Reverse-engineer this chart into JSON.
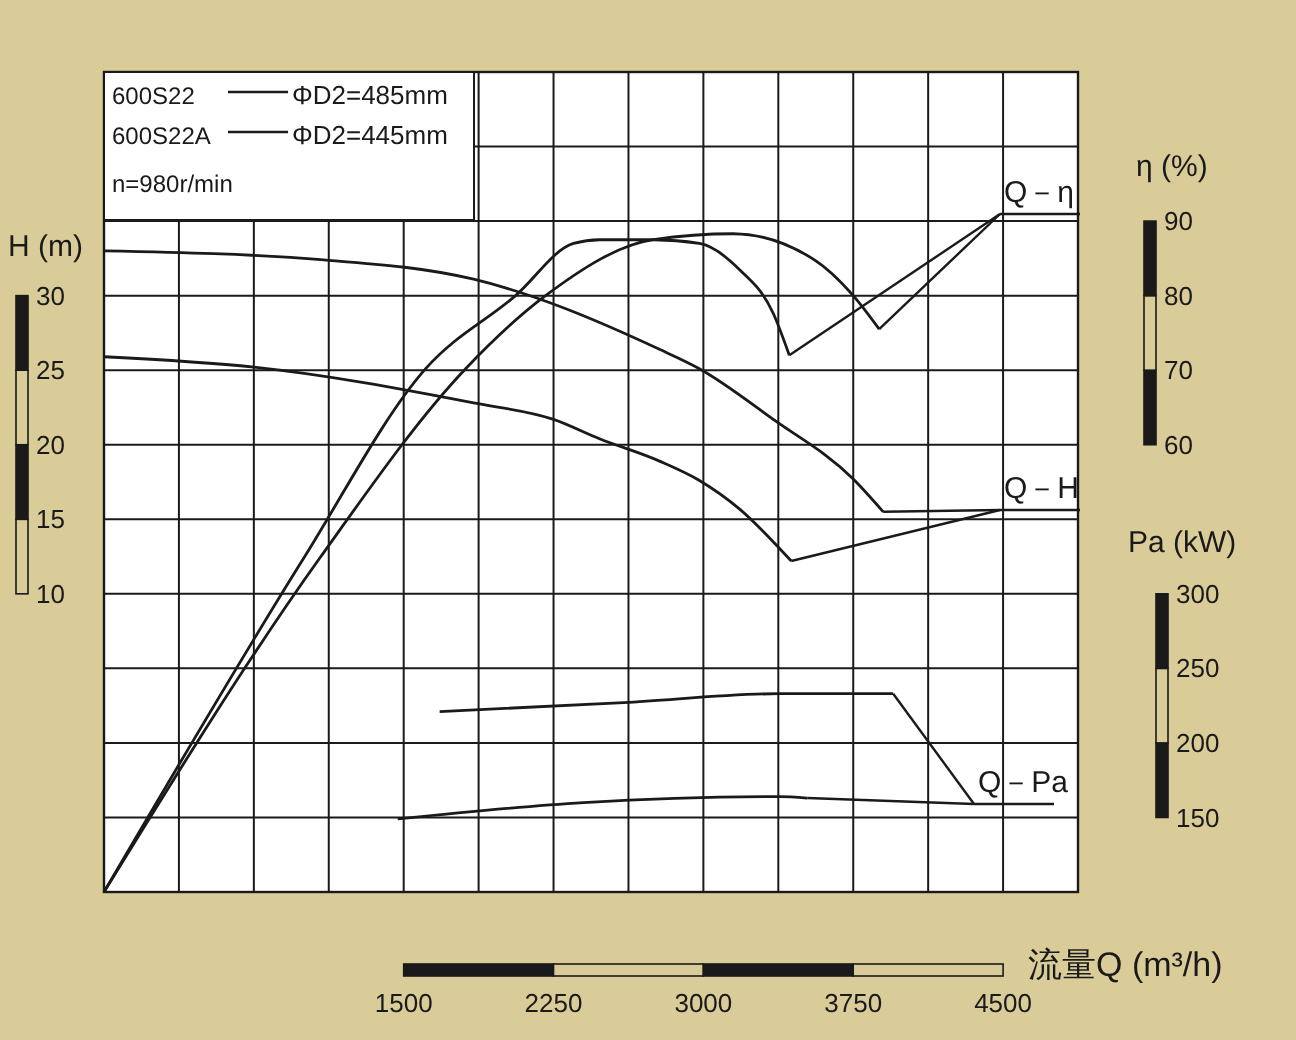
{
  "chart_data": {
    "type": "line",
    "xlabel": "流量Q (m³/h)",
    "ylabel": "H (m)",
    "y2label": "η (%)",
    "y3label": "Pa (kW)",
    "legend_title": "n=980r/min",
    "xlim": [
      0,
      4875
    ],
    "xticks": [
      {
        "value": 0,
        "label": null
      },
      {
        "value": 375,
        "label": null
      },
      {
        "value": 750,
        "label": null
      },
      {
        "value": 1125,
        "label": null
      },
      1500,
      {
        "value": 1875,
        "label": null
      },
      2250,
      {
        "value": 2625,
        "label": null
      },
      3000,
      {
        "value": 3375,
        "label": null
      },
      3750,
      {
        "value": 4125,
        "label": null
      },
      4500,
      {
        "value": 4875,
        "label": null
      }
    ],
    "ylim": [
      -10,
      45
    ],
    "yticks": [
      {
        "value": -10,
        "label": null
      },
      {
        "value": -5,
        "label": null
      },
      {
        "value": 0,
        "label": null
      },
      {
        "value": 5,
        "label": null
      },
      10,
      15,
      20,
      25,
      30,
      {
        "value": 35,
        "label": null
      },
      {
        "value": 40,
        "label": null
      },
      {
        "value": 45,
        "label": null
      }
    ],
    "y2lim": [
      0,
      110
    ],
    "y2ticks": [
      60,
      70,
      80,
      90
    ],
    "y3lim": [
      100,
      650
    ],
    "y3ticks": [
      150,
      200,
      250,
      300
    ],
    "grid": true,
    "legend": "top left",
    "marker": "none",
    "line_style": "solid",
    "series": [
      {
        "name": "600S22",
        "color": "#1a1a1a",
        "x": [
          0,
          1100,
          1850,
          2780,
          2980,
          3350,
          3750,
          3900
        ],
        "values": [
          33.0,
          32.4,
          31.1,
          26.4,
          25.1,
          21.7,
          17.7,
          15.5
        ]
      },
      {
        "name": "600S22A",
        "color": "#1a1a1a",
        "x": [
          0,
          750,
          1850,
          2250,
          2480,
          2780,
          2980,
          3180,
          3440
        ],
        "values": [
          25.9,
          25.2,
          22.8,
          21.7,
          20.4,
          18.9,
          17.6,
          15.7,
          12.2
        ]
      },
      {
        "color": "#1a1a1a",
        "axis": "y2",
        "x": [
          0,
          1080,
          1810,
          2210,
          2750,
          3150,
          3550,
          3750,
          3880
        ],
        "values": [
          0,
          44.8,
          70.2,
          80.0,
          87.5,
          88.3,
          84.9,
          80.0,
          75.5
        ]
      },
      {
        "color": "#1a1a1a",
        "axis": "y2",
        "x": [
          0,
          1000,
          1610,
          2060,
          2350,
          2480,
          2750,
          2980,
          3180,
          3350,
          3430
        ],
        "values": [
          0,
          44.8,
          70.2,
          80.0,
          87.0,
          87.5,
          87.5,
          87.0,
          83.5,
          77.6,
          72.0
        ]
      },
      {
        "color": "#1a1a1a",
        "axis": "y3",
        "x": [
          1680,
          2600,
          3380,
          3950
        ],
        "values": [
          221,
          227,
          233,
          233
        ]
      },
      {
        "color": "#1a1a1a",
        "axis": "y3",
        "x": [
          1470,
          2400,
          3380,
          3520
        ],
        "values": [
          149,
          160,
          164,
          163
        ]
      }
    ],
    "annotations": [
      {
        "text": "Q－η",
        "x": 3880,
        "y": 27.75
      },
      {
        "text": "Q－H",
        "x": 3900,
        "y": 15.5
      },
      {
        "text": "Q－Pa",
        "x": 3950,
        "y": 3.3
      },
      "ΦD2=485mm",
      "ΦD2=445mm"
    ]
  }
}
